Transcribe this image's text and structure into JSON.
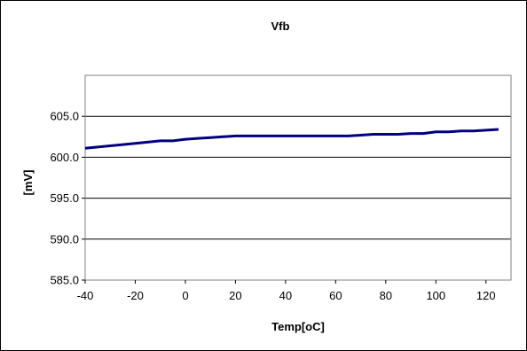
{
  "chart_data": {
    "type": "line",
    "title": "Vfb",
    "xlabel": "Temp[oC]",
    "ylabel": "[mV]",
    "xlim": [
      -40,
      130
    ],
    "ylim": [
      585,
      610
    ],
    "x_ticks": [
      -40,
      -20,
      0,
      20,
      40,
      60,
      80,
      100,
      120
    ],
    "y_ticks": [
      585.0,
      590.0,
      595.0,
      600.0,
      605.0
    ],
    "y_tick_labels": [
      "585.0",
      "590.0",
      "595.0",
      "600.0",
      "605.0"
    ],
    "grid": "horizontal",
    "legend": "none",
    "line_color": "#000080",
    "series": [
      {
        "x": [
          -40,
          -30,
          -20,
          -10,
          -5,
          0,
          5,
          10,
          15,
          20,
          30,
          40,
          50,
          60,
          65,
          70,
          75,
          80,
          85,
          90,
          95,
          100,
          105,
          110,
          115,
          120,
          125
        ],
        "y": [
          601.1,
          601.4,
          601.7,
          602.0,
          602.0,
          602.2,
          602.3,
          602.4,
          602.5,
          602.6,
          602.6,
          602.6,
          602.6,
          602.6,
          602.6,
          602.7,
          602.8,
          602.8,
          602.8,
          602.9,
          602.9,
          603.1,
          603.1,
          603.2,
          603.2,
          603.3,
          603.4
        ]
      }
    ]
  }
}
